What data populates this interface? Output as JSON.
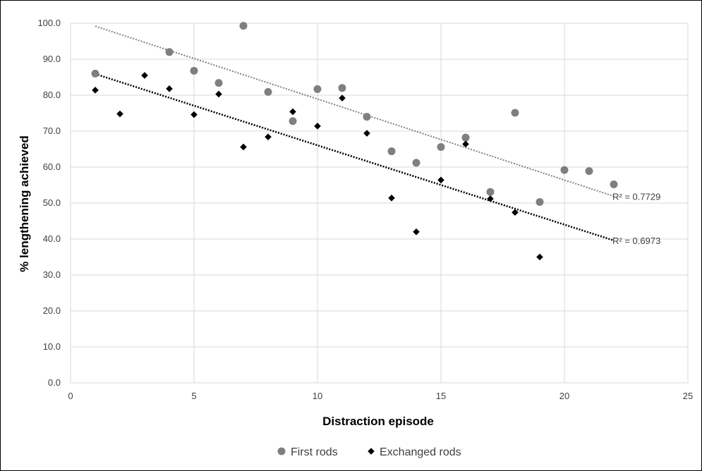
{
  "chart_data": {
    "type": "scatter",
    "title": "",
    "xlabel": "Distraction episode",
    "ylabel": "% lengthening achieved",
    "xlim": [
      0,
      25
    ],
    "ylim": [
      0,
      100
    ],
    "x_ticks": [
      "0",
      "5",
      "10",
      "15",
      "20",
      "25"
    ],
    "y_ticks": [
      "0.0",
      "10.0",
      "20.0",
      "30.0",
      "40.0",
      "50.0",
      "60.0",
      "70.0",
      "80.0",
      "90.0",
      "100.0"
    ],
    "grid": true,
    "legend_position": "bottom",
    "series": [
      {
        "name": "First rods",
        "marker": "circle",
        "color": "#7f7f7f",
        "points": [
          [
            1,
            86.0
          ],
          [
            4,
            92.0
          ],
          [
            5,
            86.8
          ],
          [
            6,
            83.4
          ],
          [
            7,
            99.3
          ],
          [
            8,
            80.9
          ],
          [
            9,
            72.8
          ],
          [
            10,
            81.7
          ],
          [
            11,
            82.0
          ],
          [
            12,
            74.0
          ],
          [
            13,
            64.4
          ],
          [
            14,
            61.2
          ],
          [
            15,
            65.6
          ],
          [
            16,
            68.2
          ],
          [
            17,
            53.1
          ],
          [
            18,
            75.1
          ],
          [
            19,
            50.3
          ],
          [
            20,
            59.2
          ],
          [
            21,
            58.9
          ],
          [
            22,
            55.2
          ]
        ],
        "trendline": {
          "type": "linear",
          "start": [
            1,
            99.2
          ],
          "end": [
            22,
            51.9
          ],
          "r2_label": "R² = 0.7729",
          "color": "#7f7f7f"
        }
      },
      {
        "name": "Exchanged rods",
        "marker": "diamond",
        "color": "#000000",
        "points": [
          [
            1,
            81.4
          ],
          [
            2,
            74.8
          ],
          [
            3,
            85.5
          ],
          [
            4,
            81.8
          ],
          [
            5,
            74.6
          ],
          [
            6,
            80.3
          ],
          [
            7,
            65.6
          ],
          [
            8,
            68.4
          ],
          [
            9,
            75.4
          ],
          [
            10,
            71.4
          ],
          [
            11,
            79.2
          ],
          [
            12,
            69.4
          ],
          [
            13,
            51.4
          ],
          [
            14,
            42.0
          ],
          [
            15,
            56.4
          ],
          [
            16,
            66.4
          ],
          [
            17,
            51.2
          ],
          [
            18,
            47.4
          ],
          [
            19,
            35.0
          ]
        ],
        "trendline": {
          "type": "linear",
          "start": [
            1,
            85.9
          ],
          "end": [
            22,
            39.6
          ],
          "r2_label": "R² = 0.6973",
          "color": "#000000"
        }
      }
    ]
  }
}
